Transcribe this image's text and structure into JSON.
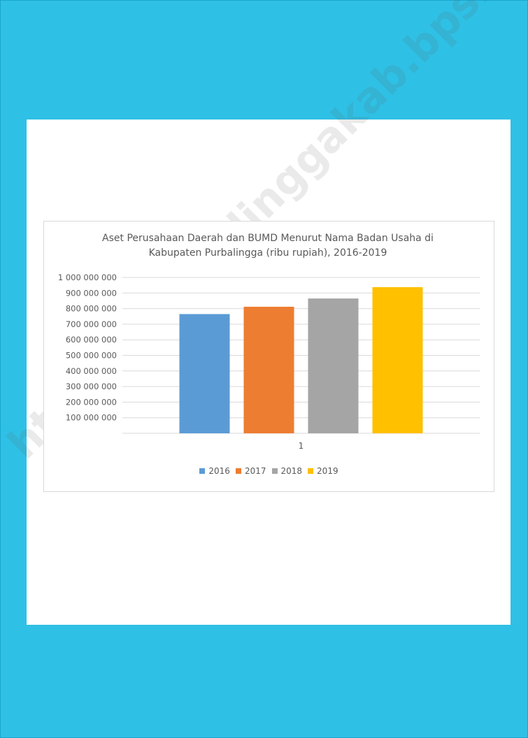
{
  "colors": {
    "background": "#2fc0e5",
    "sheet": "#ffffff",
    "gridline": "#d9d9d9",
    "text": "#595959"
  },
  "watermark": "https://purbalinggakab.bps.go.id",
  "chart_data": {
    "type": "bar",
    "title": "Aset Perusahaan Daerah dan BUMD Menurut Nama Badan Usaha di Kabupaten Purbalingga (ribu rupiah), 2016-2019",
    "title_lines": [
      "Aset Perusahaan Daerah dan BUMD Menurut Nama Badan Usaha di",
      "Kabupaten Purbalingga (ribu rupiah), 2016-2019"
    ],
    "categories": [
      "1"
    ],
    "series": [
      {
        "name": "2016",
        "values": [
          765000000
        ],
        "color": "#5b9bd5"
      },
      {
        "name": "2017",
        "values": [
          812000000
        ],
        "color": "#ed7d31"
      },
      {
        "name": "2018",
        "values": [
          865000000
        ],
        "color": "#a5a5a5"
      },
      {
        "name": "2019",
        "values": [
          938000000
        ],
        "color": "#ffc000"
      }
    ],
    "ylim": [
      0,
      1000000000
    ],
    "yticks": [
      {
        "value": 100000000,
        "label": "100 000 000"
      },
      {
        "value": 200000000,
        "label": "200 000 000"
      },
      {
        "value": 300000000,
        "label": "300 000 000"
      },
      {
        "value": 400000000,
        "label": "400 000 000"
      },
      {
        "value": 500000000,
        "label": "500 000 000"
      },
      {
        "value": 600000000,
        "label": "600 000 000"
      },
      {
        "value": 700000000,
        "label": "700 000 000"
      },
      {
        "value": 800000000,
        "label": "800 000 000"
      },
      {
        "value": 900000000,
        "label": "900 000 000"
      },
      {
        "value": 1000000000,
        "label": "1 000 000 000"
      }
    ],
    "grid": true,
    "legend_position": "bottom"
  }
}
